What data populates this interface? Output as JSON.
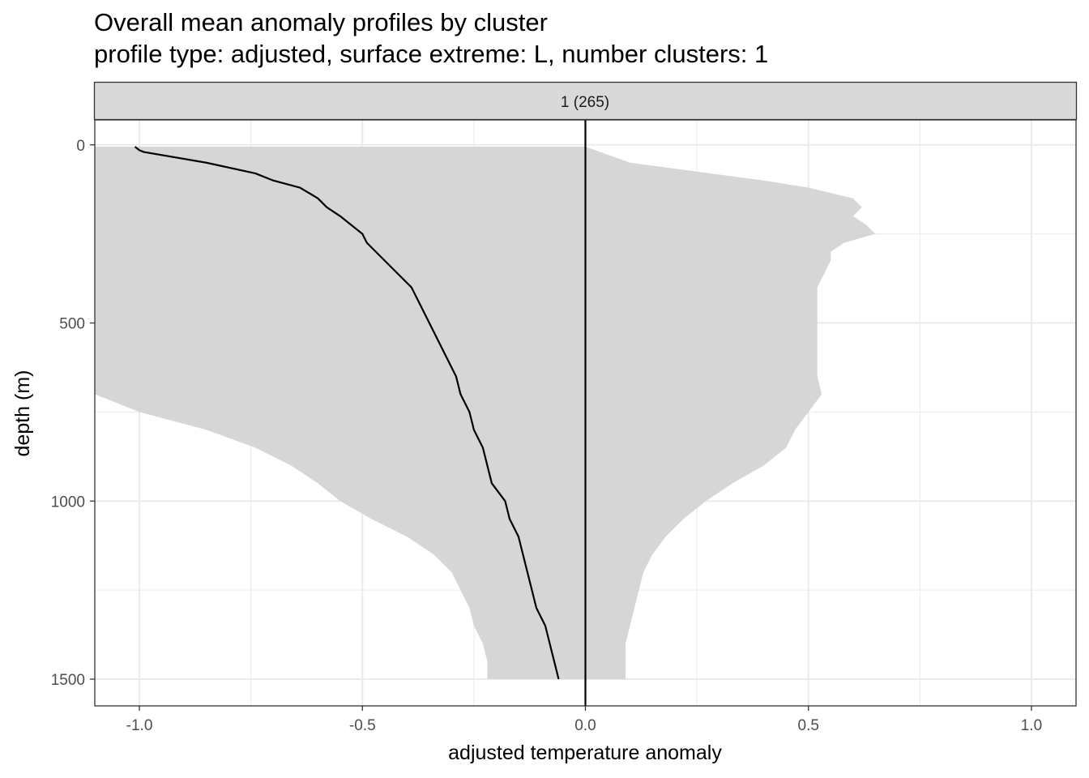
{
  "title": "Overall mean anomaly profiles by cluster",
  "subtitle": "profile type: adjusted, surface extreme: L, number clusters: 1",
  "chart_data": {
    "type": "line",
    "title": "Overall mean anomaly profiles by cluster",
    "subtitle": "profile type: adjusted, surface extreme: L, number clusters: 1",
    "facet_label": "1 (265)",
    "xlabel": "adjusted temperature anomaly",
    "ylabel": "depth (m)",
    "xlim": [
      -1.1,
      1.1
    ],
    "ylim": [
      1575,
      -70
    ],
    "y_reversed": true,
    "x_ticks": [
      -1.0,
      -0.5,
      0.0,
      0.5,
      1.0
    ],
    "x_tick_labels": [
      "-1.0",
      "-0.5",
      "0.0",
      "0.5",
      "1.0"
    ],
    "y_ticks": [
      0,
      500,
      1000,
      1500
    ],
    "y_tick_labels": [
      "0",
      "500",
      "1000",
      "1500"
    ],
    "grid": true,
    "reference_line_x": 0,
    "band": {
      "depth": [
        5,
        50,
        75,
        100,
        120,
        150,
        175,
        200,
        225,
        250,
        275,
        300,
        325,
        350,
        375,
        400,
        450,
        500,
        550,
        600,
        650,
        700,
        750,
        800,
        850,
        900,
        950,
        1000,
        1050,
        1100,
        1150,
        1200,
        1250,
        1300,
        1350,
        1400,
        1450,
        1500
      ],
      "lower": [
        -1.1,
        -1.1,
        -1.1,
        -1.1,
        -1.1,
        -1.1,
        -1.1,
        -1.1,
        -1.1,
        -1.1,
        -1.1,
        -1.1,
        -1.1,
        -1.1,
        -1.1,
        -1.1,
        -1.1,
        -1.1,
        -1.1,
        -1.1,
        -1.1,
        -1.1,
        -1.0,
        -0.85,
        -0.74,
        -0.66,
        -0.6,
        -0.55,
        -0.48,
        -0.4,
        -0.34,
        -0.3,
        -0.28,
        -0.26,
        -0.25,
        -0.23,
        -0.22,
        -0.22
      ],
      "upper": [
        0.0,
        0.1,
        0.25,
        0.4,
        0.5,
        0.6,
        0.62,
        0.6,
        0.63,
        0.65,
        0.58,
        0.55,
        0.55,
        0.54,
        0.53,
        0.52,
        0.52,
        0.52,
        0.52,
        0.52,
        0.52,
        0.53,
        0.5,
        0.47,
        0.45,
        0.4,
        0.33,
        0.27,
        0.22,
        0.18,
        0.15,
        0.13,
        0.12,
        0.11,
        0.1,
        0.09,
        0.09,
        0.09
      ]
    },
    "series": [
      {
        "depth": [
          5,
          15,
          20,
          50,
          80,
          100,
          120,
          150,
          175,
          200,
          250,
          275,
          300,
          325,
          350,
          400,
          425,
          450,
          500,
          550,
          600,
          650,
          700,
          750,
          800,
          850,
          900,
          950,
          1000,
          1050,
          1100,
          1150,
          1200,
          1250,
          1300,
          1350,
          1400,
          1450,
          1500
        ],
        "anomaly": [
          -1.01,
          -1.0,
          -0.99,
          -0.85,
          -0.74,
          -0.7,
          -0.64,
          -0.6,
          -0.58,
          -0.55,
          -0.5,
          -0.49,
          -0.47,
          -0.45,
          -0.43,
          -0.39,
          -0.38,
          -0.37,
          -0.35,
          -0.33,
          -0.31,
          -0.29,
          -0.28,
          -0.26,
          -0.25,
          -0.23,
          -0.22,
          -0.21,
          -0.18,
          -0.17,
          -0.15,
          -0.14,
          -0.13,
          -0.12,
          -0.11,
          -0.09,
          -0.08,
          -0.07,
          -0.06
        ]
      }
    ]
  }
}
